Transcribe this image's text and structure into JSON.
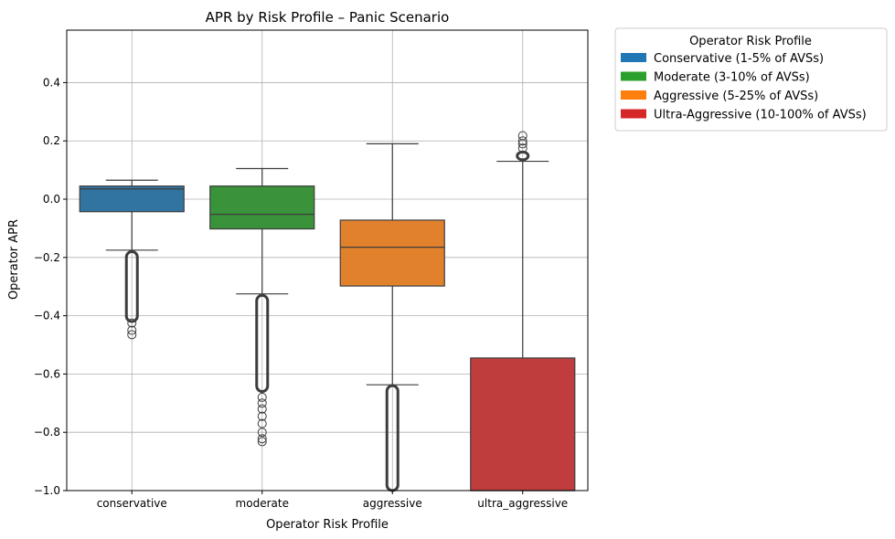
{
  "chart_data": {
    "type": "box",
    "title": "APR by Risk Profile – Panic Scenario",
    "xlabel": "Operator Risk Profile",
    "ylabel": "Operator APR",
    "ylim": [
      -1.0,
      0.58
    ],
    "yticks": [
      -1.0,
      -0.8,
      -0.6,
      -0.4,
      -0.2,
      0.0,
      0.2,
      0.4
    ],
    "ytick_labels": [
      "−1.0",
      "−0.8",
      "−0.6",
      "−0.4",
      "−0.2",
      "0.0",
      "0.2",
      "0.4"
    ],
    "grid": true,
    "legend_placement": "outside-top-right",
    "legend_title": "Operator Risk Profile",
    "categories": [
      "conservative",
      "moderate",
      "aggressive",
      "ultra_aggressive"
    ],
    "series": [
      {
        "category": "conservative",
        "legend_label": "Conservative (1-5% of AVSs)",
        "color": "#1f77b4",
        "box_color": "#3274a1",
        "whisker_low": -0.175,
        "q1": -0.043,
        "median": 0.035,
        "q3": 0.045,
        "whisker_high": 0.065,
        "outlier_band": [
          -0.42,
          -0.18
        ],
        "outliers": [
          -0.425,
          -0.45,
          -0.465
        ]
      },
      {
        "category": "moderate",
        "legend_label": "Moderate (3-10% of AVSs)",
        "color": "#2ca02c",
        "box_color": "#3a923a",
        "whisker_low": -0.325,
        "q1": -0.102,
        "median": -0.052,
        "q3": 0.045,
        "whisker_high": 0.105,
        "outlier_band": [
          -0.66,
          -0.33
        ],
        "outliers": [
          -0.68,
          -0.7,
          -0.72,
          -0.745,
          -0.77,
          -0.8,
          -0.822,
          -0.832
        ]
      },
      {
        "category": "aggressive",
        "legend_label": "Aggressive (5-25% of AVSs)",
        "color": "#ff7f0e",
        "box_color": "#e1812c",
        "whisker_low": -0.637,
        "q1": -0.298,
        "median": -0.165,
        "q3": -0.072,
        "whisker_high": 0.19,
        "outlier_band": [
          -1.0,
          -0.64
        ],
        "outliers": []
      },
      {
        "category": "ultra_aggressive",
        "legend_label": "Ultra-Aggressive (10-100% of AVSs)",
        "color": "#d62728",
        "box_color": "#c03d3e",
        "whisker_low": -1.0,
        "q1": -1.0,
        "median": -1.0,
        "q3": -0.545,
        "whisker_high": 0.13,
        "outlier_band": [
          0.135,
          0.162
        ],
        "outliers": [
          0.175,
          0.19,
          0.2,
          0.218
        ]
      }
    ]
  }
}
